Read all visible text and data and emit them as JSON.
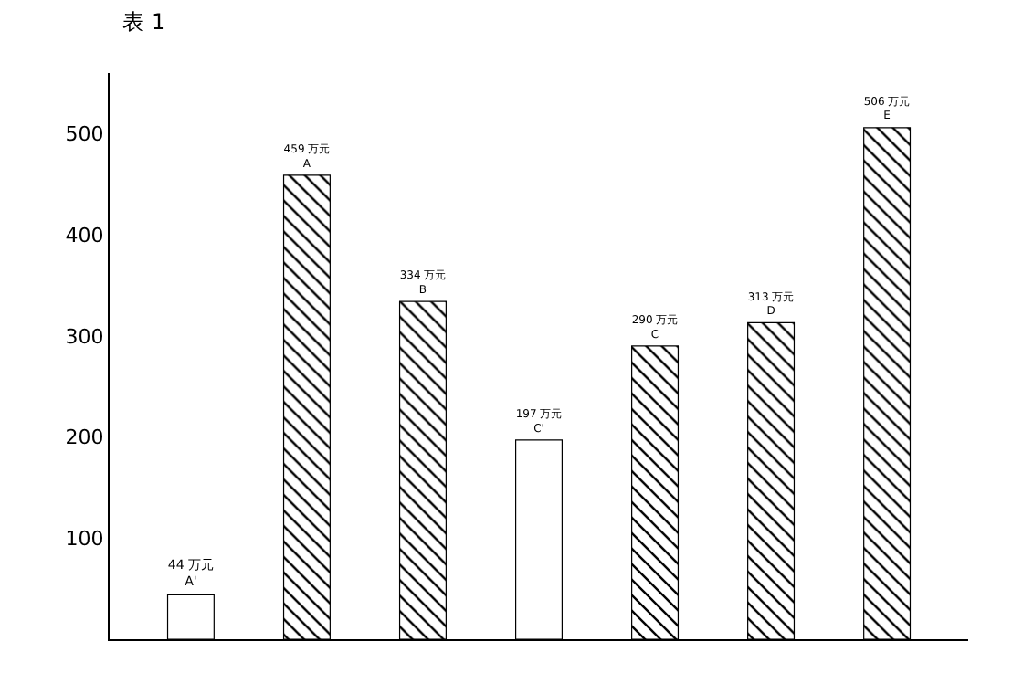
{
  "chart_data": {
    "type": "bar",
    "title": "表 1",
    "categories": [
      "A'",
      "A",
      "B",
      "C'",
      "C",
      "D",
      "E"
    ],
    "values": [
      44,
      459,
      334,
      197,
      290,
      313,
      506
    ],
    "value_labels": [
      "44 万元",
      "459 万元",
      "334 万元",
      "197 万元",
      "290 万元",
      "313 万元",
      "506 万元"
    ],
    "colors": [
      "#ffffff",
      "#000000",
      "#000000",
      "#ffffff",
      "#000000",
      "#000000",
      "#000000"
    ],
    "ylim": [
      0,
      560
    ],
    "yticks": [
      100,
      200,
      300,
      400,
      500
    ],
    "tick_labels": "y",
    "legend": false
  }
}
